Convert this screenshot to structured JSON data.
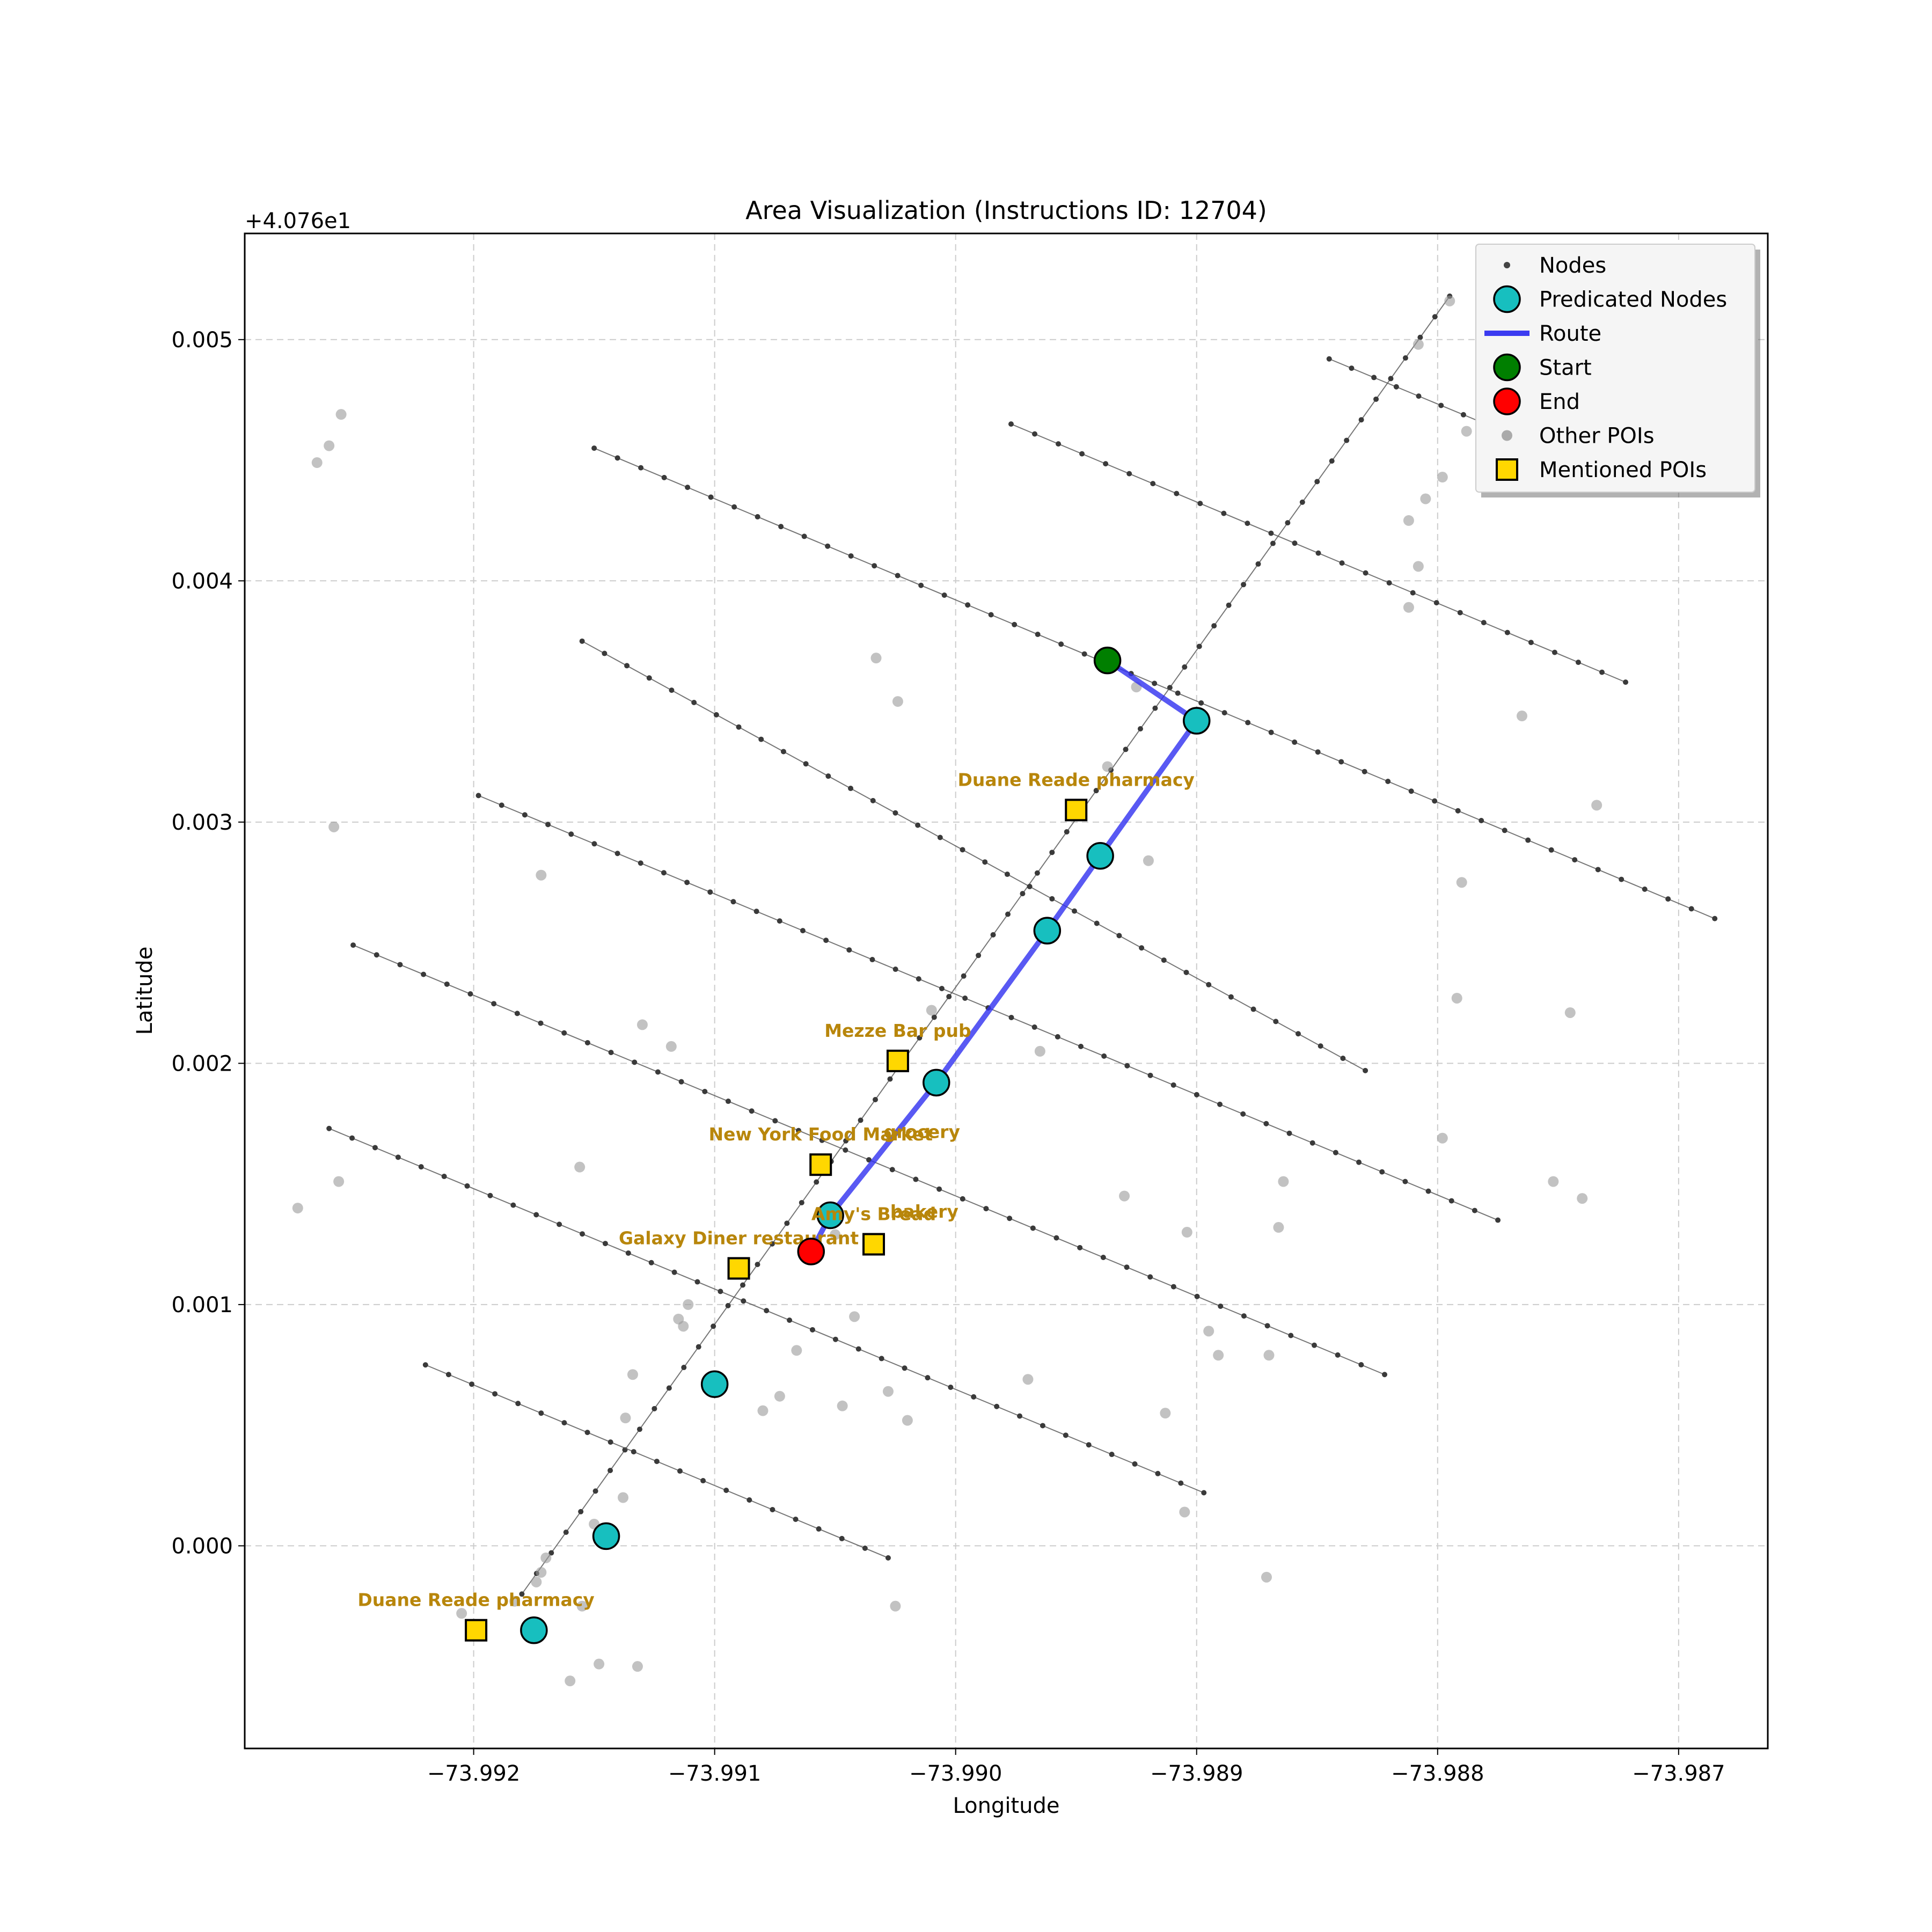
{
  "chart_data": {
    "type": "scatter",
    "title": "Area Visualization (Instructions ID: 12704)",
    "xlabel": "Longitude",
    "ylabel": "Latitude",
    "y_offset_label": "+4.076e1",
    "xlim": [
      -73.99295,
      -73.98663
    ],
    "ylim": [
      -0.00084,
      0.00544
    ],
    "x_ticks": [
      -73.992,
      -73.991,
      -73.99,
      -73.989,
      -73.988,
      -73.987
    ],
    "x_tick_labels": [
      "−73.992",
      "−73.991",
      "−73.990",
      "−73.989",
      "−73.988",
      "−73.987"
    ],
    "y_ticks": [
      0.0,
      0.001,
      0.002,
      0.003,
      0.004,
      0.005
    ],
    "y_tick_labels": [
      "0.000",
      "0.001",
      "0.002",
      "0.003",
      "0.004",
      "0.005"
    ],
    "grid": true,
    "legend_position": "top-right",
    "legend": [
      {
        "label": "Nodes",
        "kind": "small-dot",
        "color": "#444444"
      },
      {
        "label": "Predicated Nodes",
        "kind": "circle",
        "color": "#17bfbf"
      },
      {
        "label": "Route",
        "kind": "line",
        "color": "#3b3bf0"
      },
      {
        "label": "Start",
        "kind": "circle",
        "color": "#007f00"
      },
      {
        "label": "End",
        "kind": "circle",
        "color": "#ff0000"
      },
      {
        "label": "Other POIs",
        "kind": "gray-dot",
        "color": "#aaaaaa"
      },
      {
        "label": "Mentioned POIs",
        "kind": "square",
        "color": "#ffd700"
      }
    ],
    "streets": [
      [
        [
          -73.9918,
          -0.0002
        ],
        [
          -73.98795,
          0.00518
        ]
      ],
      [
        [
          -73.9922,
          0.00075
        ],
        [
          -73.99028,
          -5e-05
        ]
      ],
      [
        [
          -73.9926,
          0.00173
        ],
        [
          -73.98897,
          0.00022
        ]
      ],
      [
        [
          -73.9925,
          0.00249
        ],
        [
          -73.98822,
          0.00071
        ]
      ],
      [
        [
          -73.99198,
          0.00311
        ],
        [
          -73.98775,
          0.00135
        ]
      ],
      [
        [
          -73.99155,
          0.00375
        ],
        [
          -73.9883,
          0.00197
        ]
      ],
      [
        [
          -73.9915,
          0.00455
        ],
        [
          -73.98685,
          0.0026
        ]
      ],
      [
        [
          -73.98977,
          0.00465
        ],
        [
          -73.98722,
          0.00358
        ]
      ],
      [
        [
          -73.98845,
          0.00492
        ],
        [
          -73.9878,
          0.00465
        ]
      ]
    ],
    "route": [
      [
        -73.98937,
        0.00367
      ],
      [
        -73.989,
        0.00342
      ],
      [
        -73.9894,
        0.00286
      ],
      [
        -73.98962,
        0.00255
      ],
      [
        -73.99008,
        0.00192
      ],
      [
        -73.99052,
        0.00137
      ],
      [
        -73.9906,
        0.00122
      ]
    ],
    "predicted_nodes": [
      [
        -73.989,
        0.00342
      ],
      [
        -73.9894,
        0.00286
      ],
      [
        -73.98962,
        0.00255
      ],
      [
        -73.99008,
        0.00192
      ],
      [
        -73.99052,
        0.00137
      ],
      [
        -73.991,
        0.00067
      ],
      [
        -73.99145,
        4e-05
      ],
      [
        -73.99175,
        -0.00035
      ]
    ],
    "start": [
      -73.98937,
      0.00367
    ],
    "end": [
      -73.9906,
      0.00122
    ],
    "other_pois": [
      [
        -73.99255,
        0.00469
      ],
      [
        -73.9926,
        0.00456
      ],
      [
        -73.99265,
        0.00449
      ],
      [
        -73.99172,
        0.00278
      ],
      [
        -73.99258,
        0.00298
      ],
      [
        -73.99256,
        0.00151
      ],
      [
        -73.99273,
        0.0014
      ],
      [
        -73.99156,
        0.00157
      ],
      [
        -73.99033,
        0.00368
      ],
      [
        -73.99024,
        0.0035
      ],
      [
        -73.98925,
        0.00356
      ],
      [
        -73.98937,
        0.00323
      ],
      [
        -73.9892,
        0.00284
      ],
      [
        -73.98812,
        0.00389
      ],
      [
        -73.98808,
        0.00406
      ],
      [
        -73.98812,
        0.00425
      ],
      [
        -73.98805,
        0.00434
      ],
      [
        -73.98798,
        0.00443
      ],
      [
        -73.98788,
        0.00462
      ],
      [
        -73.98808,
        0.00498
      ],
      [
        -73.98795,
        0.00516
      ],
      [
        -73.98765,
        0.00344
      ],
      [
        -73.98734,
        0.00307
      ],
      [
        -73.9879,
        0.00275
      ],
      [
        -73.98792,
        0.00227
      ],
      [
        -73.98745,
        0.00221
      ],
      [
        -73.98798,
        0.00169
      ],
      [
        -73.98752,
        0.00151
      ],
      [
        -73.9874,
        0.00144
      ],
      [
        -73.98864,
        0.00151
      ],
      [
        -73.98866,
        0.00132
      ],
      [
        -73.98904,
        0.0013
      ],
      [
        -73.98895,
        0.00089
      ],
      [
        -73.98891,
        0.00079
      ],
      [
        -73.9887,
        0.00079
      ],
      [
        -73.9893,
        0.00145
      ],
      [
        -73.98965,
        0.00205
      ],
      [
        -73.9901,
        0.00222
      ],
      [
        -73.9913,
        0.00216
      ],
      [
        -73.99118,
        0.00207
      ],
      [
        -73.99042,
        0.00095
      ],
      [
        -73.9905,
        0.00129
      ],
      [
        -73.99111,
        0.001
      ],
      [
        -73.99115,
        0.00094
      ],
      [
        -73.99134,
        0.00071
      ],
      [
        -73.99137,
        0.00053
      ],
      [
        -73.99113,
        0.00091
      ],
      [
        -73.99066,
        0.00081
      ],
      [
        -73.99028,
        0.00064
      ],
      [
        -73.99073,
        0.00062
      ],
      [
        -73.9908,
        0.00056
      ],
      [
        -73.99047,
        0.00058
      ],
      [
        -73.9902,
        0.00052
      ],
      [
        -73.9897,
        0.00069
      ],
      [
        -73.98913,
        0.00055
      ],
      [
        -73.98905,
        0.00014
      ],
      [
        -73.98871,
        -0.00013
      ],
      [
        -73.99138,
        0.0002
      ],
      [
        -73.9915,
        9e-05
      ],
      [
        -73.9917,
        -5e-05
      ],
      [
        -73.99172,
        -0.00011
      ],
      [
        -73.99174,
        -0.00015
      ],
      [
        -73.99155,
        -0.00025
      ],
      [
        -73.99205,
        -0.00028
      ],
      [
        -73.99183,
        -0.00023
      ],
      [
        -73.99148,
        -0.00049
      ],
      [
        -73.9916,
        -0.00056
      ],
      [
        -73.99132,
        -0.0005
      ],
      [
        -73.99025,
        -0.00025
      ]
    ],
    "mentioned_pois": [
      {
        "label": "Duane Reade pharmacy",
        "pos": [
          -73.9895,
          0.00305
        ]
      },
      {
        "label": "Mezze Bar pub",
        "pos": [
          -73.99024,
          0.00201
        ]
      },
      {
        "label": "New York Food Market",
        "pos": [
          -73.99056,
          0.00158
        ]
      },
      {
        "label": "grocery",
        "label_pos": [
          -73.99014,
          0.00169
        ]
      },
      {
        "label": "Amy's Bread",
        "pos": [
          -73.99034,
          0.00125
        ]
      },
      {
        "label": "bakery",
        "label_pos": [
          -73.99013,
          0.00136
        ]
      },
      {
        "label": "Galaxy Diner restaurant",
        "pos": [
          -73.9909,
          0.00115
        ]
      },
      {
        "label": "Duane Reade pharmacy",
        "pos": [
          -73.99199,
          -0.00035
        ]
      }
    ]
  }
}
